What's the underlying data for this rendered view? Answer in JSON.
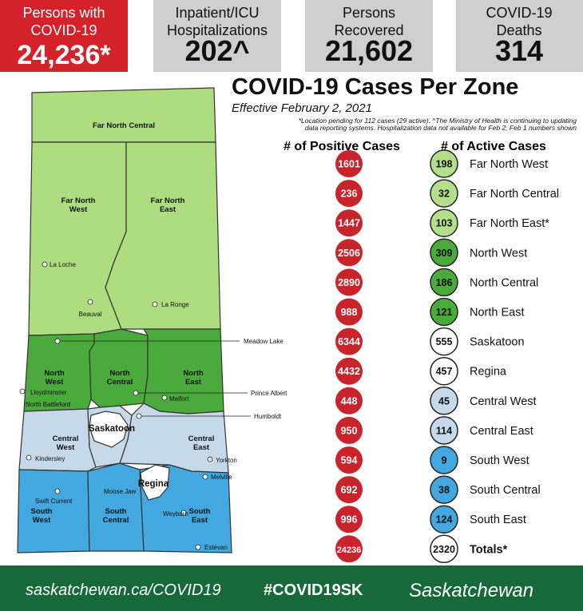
{
  "header": {
    "stats": [
      {
        "label": [
          "Persons with",
          "COVID-19"
        ],
        "value": "24,236*"
      },
      {
        "label": [
          "Inpatient/ICU",
          "Hospitalizations"
        ],
        "value": "202^"
      },
      {
        "label": [
          "Persons",
          "Recovered"
        ],
        "value": "21,602"
      },
      {
        "label": [
          "COVID-19",
          "Deaths"
        ],
        "value": "314"
      }
    ]
  },
  "title": "COVID-19 Cases Per Zone",
  "subtitle": "Effective February 2, 2021",
  "note": [
    "*Location pending for 112 cases (29 active).  ^The Ministry of Health is continuing to updating",
    "data reporting systems.  Hospitalization data not available for Feb 2; Feb 1 numbers shown"
  ],
  "table": {
    "headers": [
      "# of Positive Cases",
      "# of Active Cases"
    ],
    "rows": [
      [
        "1601",
        "198",
        "Far North West"
      ],
      [
        "236",
        "32",
        "Far North Central"
      ],
      [
        "1447",
        "103",
        "Far North East*"
      ],
      [
        "2506",
        "309",
        "North West"
      ],
      [
        "2890",
        "186",
        "North Central"
      ],
      [
        "988",
        "121",
        "North East"
      ],
      [
        "6344",
        "555",
        "Saskatoon"
      ],
      [
        "4432",
        "457",
        "Regina"
      ],
      [
        "448",
        "45",
        "Central West"
      ],
      [
        "950",
        "114",
        "Central East"
      ],
      [
        "594",
        "9",
        "South West"
      ],
      [
        "692",
        "38",
        "South Central"
      ],
      [
        "996",
        "124",
        "South East"
      ],
      [
        "24236",
        "2320",
        "Totals*"
      ]
    ]
  },
  "map": {
    "zones": [
      [
        "Far North Central"
      ],
      [
        "Far North",
        "West"
      ],
      [
        "Far North",
        "East"
      ],
      [
        "North",
        "West"
      ],
      [
        "North",
        "Central"
      ],
      [
        "North",
        "East"
      ],
      [
        "Saskatoon"
      ],
      [
        "Central",
        "West"
      ],
      [
        "Central",
        "East"
      ],
      [
        "Regina"
      ],
      [
        "South",
        "West"
      ],
      [
        "South",
        "Central"
      ],
      [
        "South",
        "East"
      ]
    ],
    "cities": [
      "La Loche",
      "Beauval",
      "La Ronge",
      "Meadow Lake",
      "Lloydminster",
      "North Battleford",
      "Prince Albert",
      "Melfort",
      "Humboldt",
      "Kindersley",
      "Yorkton",
      "Melville",
      "Swift Current",
      "Moose Jaw",
      "Weyburn",
      "Estevan"
    ]
  },
  "footer": {
    "url": "saskatchewan.ca/COVID19",
    "hashtag": "#COVID19SK",
    "brand": "Saskatchewan"
  }
}
